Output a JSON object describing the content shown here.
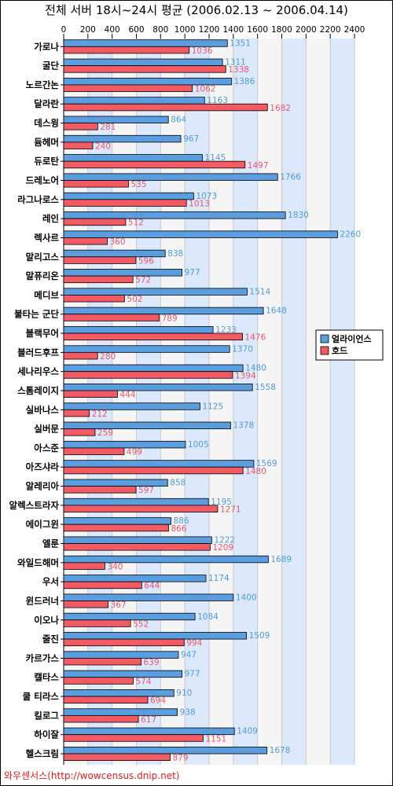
{
  "chart_data": {
    "type": "bar",
    "orientation": "horizontal",
    "title": "전체 서버 18시~24시 평균 (2006.02.13 ~ 2006.04.14)",
    "xlim": [
      0,
      2400
    ],
    "xticks": [
      0,
      200,
      400,
      600,
      800,
      1000,
      1200,
      1400,
      1600,
      1800,
      2000,
      2200,
      2400
    ],
    "legend_position": "right",
    "categories": [
      "가로나",
      "굴단",
      "노르간논",
      "달라란",
      "데스윙",
      "듐헤머",
      "듀로탄",
      "드레노어",
      "라그나로스",
      "레인",
      "렉사르",
      "말리고스",
      "말퓨리온",
      "메디브",
      "불타는 군단",
      "블랙무어",
      "블러드후프",
      "세나리우스",
      "스톰레이지",
      "실바나스",
      "실버문",
      "아스준",
      "아즈샤라",
      "알레리아",
      "알렉스트라자",
      "에이그윈",
      "엘룬",
      "와일드해머",
      "우서",
      "윈드러너",
      "이오나",
      "줄진",
      "카르가스",
      "캘타스",
      "쿨 티라스",
      "킬로그",
      "하이잘",
      "헬스크림"
    ],
    "series": [
      {
        "name": "얼라이언스",
        "color": "#5b9ee0",
        "values": [
          1351,
          1311,
          1386,
          1163,
          864,
          967,
          1145,
          1766,
          1073,
          1830,
          2260,
          838,
          977,
          1514,
          1648,
          1233,
          1370,
          1480,
          1558,
          1125,
          1378,
          1005,
          1569,
          858,
          1195,
          886,
          1222,
          1689,
          1174,
          1400,
          1084,
          1509,
          947,
          977,
          910,
          938,
          1409,
          1678
        ]
      },
      {
        "name": "호드",
        "color": "#f25a64",
        "values": [
          1036,
          1338,
          1062,
          1682,
          281,
          240,
          1497,
          535,
          1013,
          512,
          360,
          596,
          572,
          502,
          789,
          1476,
          280,
          1394,
          444,
          212,
          259,
          499,
          1480,
          597,
          1271,
          866,
          1209,
          340,
          644,
          367,
          552,
          994,
          639,
          574,
          694,
          617,
          1151,
          879
        ]
      }
    ]
  },
  "footer": "와우센서스(http://wowcensus.dnip.net)"
}
